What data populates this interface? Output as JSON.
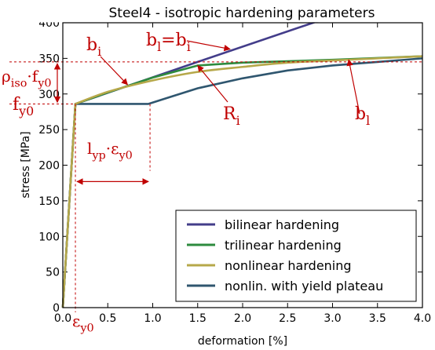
{
  "chart_data": {
    "type": "line",
    "title": "Steel4 - isotropic hardening parameters",
    "xlabel": "deformation [%]",
    "ylabel": "stress [MPa]",
    "xlim": [
      0.0,
      4.0
    ],
    "ylim": [
      0,
      400
    ],
    "xticks": [
      "0.0",
      "0.5",
      "1.0",
      "1.5",
      "2.0",
      "2.5",
      "3.0",
      "3.5",
      "4.0"
    ],
    "yticks": [
      "0",
      "50",
      "100",
      "150",
      "200",
      "250",
      "300",
      "350",
      "400"
    ],
    "grid": false,
    "legend_position": "bottom-right",
    "series": [
      {
        "name": "bilinear hardening",
        "color": "#433d8a",
        "x": [
          0.0,
          0.14,
          1.5,
          2.9
        ],
        "y": [
          0,
          286,
          345,
          405
        ]
      },
      {
        "name": "trilinear hardening",
        "color": "#2e8b3e",
        "x": [
          0.0,
          0.14,
          0.5,
          1.0,
          1.5,
          2.0,
          3.0,
          4.0
        ],
        "y": [
          0,
          286,
          302,
          323,
          340,
          344,
          348,
          353
        ]
      },
      {
        "name": "nonlinear hardening",
        "color": "#b6a84a",
        "x": [
          0.0,
          0.14,
          0.5,
          1.0,
          1.5,
          2.0,
          2.5,
          3.0,
          3.5,
          4.0
        ],
        "y": [
          0,
          286,
          303,
          319,
          331,
          338,
          344,
          347,
          350,
          353
        ]
      },
      {
        "name": "nonlin. with yield plateau",
        "color": "#2f566f",
        "x": [
          0.0,
          0.14,
          0.95,
          1.2,
          1.5,
          2.0,
          2.5,
          3.0,
          3.5,
          4.0
        ],
        "y": [
          0,
          286,
          286,
          296,
          308,
          322,
          333,
          340,
          345,
          350
        ]
      }
    ],
    "annotations": {
      "bl_eq_bi": {
        "main": "b",
        "sub1": "l",
        "eq": "=b",
        "sub2": "i"
      },
      "bi": {
        "main": "b",
        "sub": "i"
      },
      "rho": {
        "p1": "ρ",
        "s1": "iso",
        "p2": "·f",
        "s2": "y0"
      },
      "fy0": {
        "main": "f",
        "sub": "y0"
      },
      "Ri": {
        "main": "R",
        "sub": "i"
      },
      "bl": {
        "main": "b",
        "sub": "l"
      },
      "lyp": {
        "p1": "l",
        "s1": "yp",
        "p2": "·ε",
        "s2": "y0"
      },
      "ey0": {
        "main": "ε",
        "sub": "y0"
      }
    },
    "reference_values": {
      "fy0": 286,
      "yield_plateau_end_strain": 0.97,
      "ey0": 0.14,
      "rho_iso_line_stress": 345
    }
  }
}
